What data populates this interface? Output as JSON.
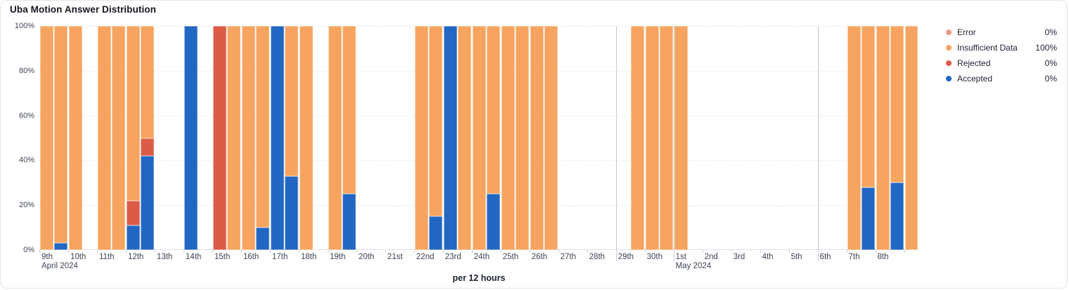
{
  "chart_data": {
    "type": "bar",
    "stacked": true,
    "title": "Uba Motion Answer Distribution",
    "xlabel": "per 12 hours",
    "ylabel": "",
    "ylim": [
      0,
      100
    ],
    "y_tick_labels": [
      "100%",
      "80%",
      "60%",
      "40%",
      "20%",
      "0%"
    ],
    "slots_total": 61,
    "colors": {
      "error": "#EC9A89",
      "insufficient": "#F6A45F",
      "rejected": "#DC5B46",
      "accepted": "#2267C3",
      "marker_line": "#C3C7CF"
    },
    "legend": [
      {
        "key": "error",
        "label": "Error",
        "value": "0%"
      },
      {
        "key": "insufficient",
        "label": "Insufficient Data",
        "value": "100%"
      },
      {
        "key": "rejected",
        "label": "Rejected",
        "value": "0%"
      },
      {
        "key": "accepted",
        "label": "Accepted",
        "value": "0%"
      }
    ],
    "marker_lines": [
      40,
      44,
      54
    ],
    "x_ticks": [
      {
        "slot": 0,
        "label": "9th",
        "month": "April 2024"
      },
      {
        "slot": 2,
        "label": "10th"
      },
      {
        "slot": 4,
        "label": "11th"
      },
      {
        "slot": 6,
        "label": "12th"
      },
      {
        "slot": 8,
        "label": "13th"
      },
      {
        "slot": 10,
        "label": "14th"
      },
      {
        "slot": 12,
        "label": "15th"
      },
      {
        "slot": 14,
        "label": "16th"
      },
      {
        "slot": 16,
        "label": "17th"
      },
      {
        "slot": 18,
        "label": "18th"
      },
      {
        "slot": 20,
        "label": "19th"
      },
      {
        "slot": 22,
        "label": "20th"
      },
      {
        "slot": 24,
        "label": "21st"
      },
      {
        "slot": 26,
        "label": "22nd"
      },
      {
        "slot": 28,
        "label": "23rd"
      },
      {
        "slot": 30,
        "label": "24th"
      },
      {
        "slot": 32,
        "label": "25th"
      },
      {
        "slot": 34,
        "label": "26th"
      },
      {
        "slot": 36,
        "label": "27th"
      },
      {
        "slot": 38,
        "label": "28th"
      },
      {
        "slot": 40,
        "label": "29th"
      },
      {
        "slot": 42,
        "label": "30th"
      },
      {
        "slot": 44,
        "label": "1st",
        "month": "May 2024"
      },
      {
        "slot": 46,
        "label": "2nd"
      },
      {
        "slot": 48,
        "label": "3rd"
      },
      {
        "slot": 50,
        "label": "4th"
      },
      {
        "slot": 52,
        "label": "5th"
      },
      {
        "slot": 54,
        "label": "6th"
      },
      {
        "slot": 56,
        "label": "7th"
      },
      {
        "slot": 58,
        "label": "8th"
      },
      {
        "slot": 60,
        "label": ""
      }
    ],
    "bars": [
      {
        "slot": 0,
        "insufficient": 100
      },
      {
        "slot": 1,
        "accepted": 3,
        "insufficient": 97
      },
      {
        "slot": 2,
        "insufficient": 100
      },
      {
        "slot": 4,
        "insufficient": 100
      },
      {
        "slot": 5,
        "insufficient": 100
      },
      {
        "slot": 6,
        "accepted": 11,
        "rejected": 11,
        "insufficient": 78
      },
      {
        "slot": 7,
        "accepted": 42,
        "rejected": 8,
        "insufficient": 50
      },
      {
        "slot": 10,
        "accepted": 100
      },
      {
        "slot": 12,
        "rejected": 100
      },
      {
        "slot": 13,
        "insufficient": 100
      },
      {
        "slot": 14,
        "insufficient": 100
      },
      {
        "slot": 15,
        "accepted": 10,
        "insufficient": 90
      },
      {
        "slot": 16,
        "accepted": 100
      },
      {
        "slot": 17,
        "accepted": 33,
        "insufficient": 67
      },
      {
        "slot": 18,
        "insufficient": 100
      },
      {
        "slot": 20,
        "insufficient": 100
      },
      {
        "slot": 21,
        "accepted": 25,
        "insufficient": 75
      },
      {
        "slot": 26,
        "insufficient": 100
      },
      {
        "slot": 27,
        "accepted": 15,
        "insufficient": 85
      },
      {
        "slot": 28,
        "accepted": 100
      },
      {
        "slot": 29,
        "insufficient": 100
      },
      {
        "slot": 30,
        "insufficient": 100
      },
      {
        "slot": 31,
        "accepted": 25,
        "insufficient": 75
      },
      {
        "slot": 32,
        "insufficient": 100
      },
      {
        "slot": 33,
        "insufficient": 100
      },
      {
        "slot": 34,
        "insufficient": 100
      },
      {
        "slot": 35,
        "insufficient": 100
      },
      {
        "slot": 41,
        "insufficient": 100
      },
      {
        "slot": 42,
        "insufficient": 100
      },
      {
        "slot": 43,
        "insufficient": 100
      },
      {
        "slot": 44,
        "insufficient": 100
      },
      {
        "slot": 56,
        "insufficient": 100
      },
      {
        "slot": 57,
        "accepted": 28,
        "insufficient": 72
      },
      {
        "slot": 58,
        "insufficient": 100
      },
      {
        "slot": 59,
        "accepted": 30,
        "insufficient": 70
      },
      {
        "slot": 60,
        "insufficient": 100
      }
    ]
  }
}
